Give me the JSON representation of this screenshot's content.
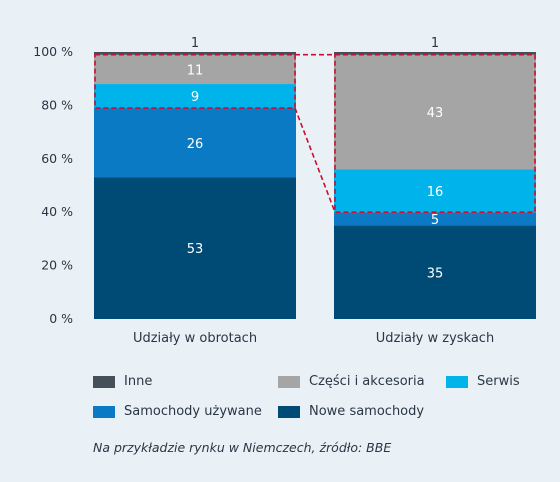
{
  "chart_data": {
    "type": "bar",
    "stacked": true,
    "categories": [
      "Udziały w obrotach",
      "Udziały w zyskach"
    ],
    "series": [
      {
        "name": "Nowe samochody",
        "color": "#004b76",
        "values": [
          53,
          35
        ]
      },
      {
        "name": "Samochody używane",
        "color": "#0a7ac4",
        "values": [
          26,
          5
        ]
      },
      {
        "name": "Serwis",
        "color": "#00b3ea",
        "values": [
          9,
          16
        ]
      },
      {
        "name": "Części i akcesoria",
        "color": "#a5a5a5",
        "values": [
          11,
          43
        ]
      },
      {
        "name": "Inne",
        "color": "#444f5a",
        "values": [
          1,
          1
        ]
      }
    ],
    "ylim": [
      0,
      100
    ],
    "yticks": [
      "0 %",
      "20 %",
      "40 %",
      "60 %",
      "80 %",
      "100 %"
    ],
    "ytick_values": [
      0,
      20,
      40,
      60,
      80,
      100
    ],
    "grid": false,
    "legend": {
      "placement": "bottom",
      "row1": [
        "Inne",
        "Części i akcesoria",
        "Serwis"
      ],
      "row2": [
        "Samochody używane",
        "Nowe samochody"
      ]
    },
    "annotation": "dashed outline linking Serwis + Części i akcesoria segments of both bars",
    "annotation_color": "#c8102e"
  },
  "caption": "Na przykładzie rynku w Niemczech, źródło: BBE"
}
